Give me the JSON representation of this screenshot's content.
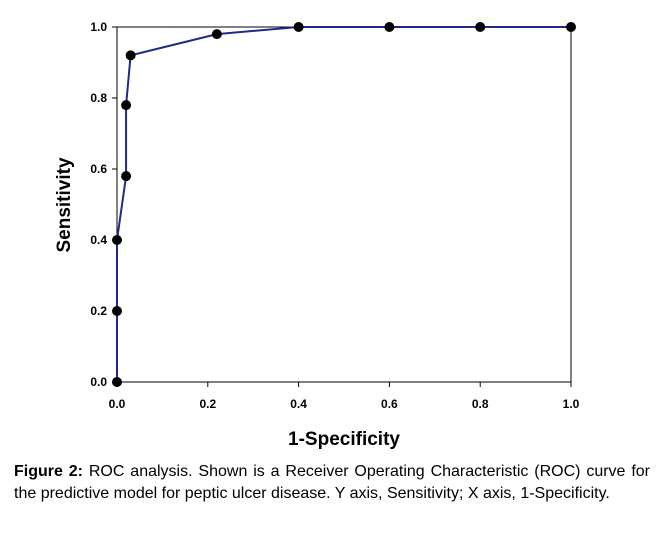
{
  "chart_data": {
    "type": "line",
    "title": "",
    "xlabel": "1-Specificity",
    "ylabel": "Sensitivity",
    "xlim": [
      0,
      1
    ],
    "ylim": [
      0,
      1
    ],
    "xticks": [
      "0.0",
      "0.2",
      "0.4",
      "0.6",
      "0.8",
      "1.0"
    ],
    "yticks": [
      "0.0",
      "0.2",
      "0.4",
      "0.6",
      "0.8",
      "1.0"
    ],
    "grid": false,
    "legend": "none",
    "series": [
      {
        "color": "#1f2a8c",
        "marker_color": "#000000",
        "points": [
          {
            "x": 0.0,
            "y": 0.0
          },
          {
            "x": 0.0,
            "y": 0.2
          },
          {
            "x": 0.0,
            "y": 0.4
          },
          {
            "x": 0.02,
            "y": 0.58
          },
          {
            "x": 0.02,
            "y": 0.78
          },
          {
            "x": 0.03,
            "y": 0.92
          },
          {
            "x": 0.22,
            "y": 0.98
          },
          {
            "x": 0.4,
            "y": 1.0
          },
          {
            "x": 0.6,
            "y": 1.0
          },
          {
            "x": 0.8,
            "y": 1.0
          },
          {
            "x": 1.0,
            "y": 1.0
          }
        ]
      }
    ]
  },
  "caption": {
    "label": "Figure 2:",
    "text": " ROC analysis. Shown is a Receiver Operating Characteristic (ROC) curve for the predictive model for peptic ulcer disease. Y axis, Sensitivity; X axis, 1-Specificity."
  }
}
